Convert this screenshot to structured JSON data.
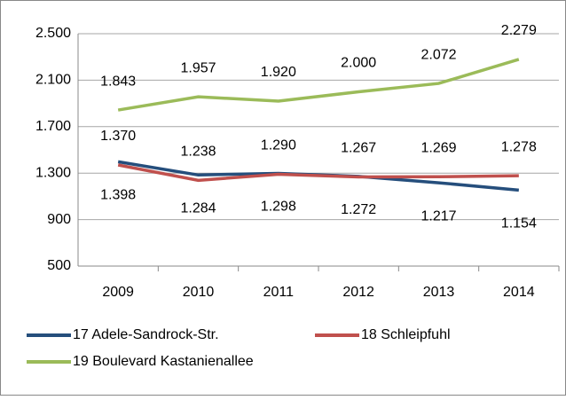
{
  "chart_data": {
    "type": "line",
    "categories": [
      "2009",
      "2010",
      "2011",
      "2012",
      "2013",
      "2014"
    ],
    "series": [
      {
        "name": "17 Adele-Sandrock-Str.",
        "color": "#254e7c",
        "values": [
          1398,
          1284,
          1298,
          1272,
          1217,
          1154
        ],
        "value_labels": [
          "1.398",
          "1.284",
          "1.298",
          "1.272",
          "1.217",
          "1.154"
        ]
      },
      {
        "name": "18 Schleipfuhl",
        "color": "#c0504d",
        "values": [
          1370,
          1238,
          1290,
          1267,
          1269,
          1278
        ],
        "value_labels": [
          "1.370",
          "1.238",
          "1.290",
          "1.267",
          "1.269",
          "1.278"
        ]
      },
      {
        "name": "19 Boulevard Kastanienallee",
        "color": "#9bbb59",
        "values": [
          1843,
          1957,
          1920,
          2000,
          2072,
          2279
        ],
        "value_labels": [
          "1.843",
          "1.957",
          "1.920",
          "2.000",
          "2.072",
          "2.279"
        ]
      }
    ],
    "ylim": [
      500,
      2500
    ],
    "yticks": [
      {
        "value": 500,
        "label": "500"
      },
      {
        "value": 900,
        "label": "900"
      },
      {
        "value": 1300,
        "label": "1.300"
      },
      {
        "value": 1700,
        "label": "1.700"
      },
      {
        "value": 2100,
        "label": "2.100"
      },
      {
        "value": 2500,
        "label": "2.500"
      }
    ],
    "grid": true
  }
}
